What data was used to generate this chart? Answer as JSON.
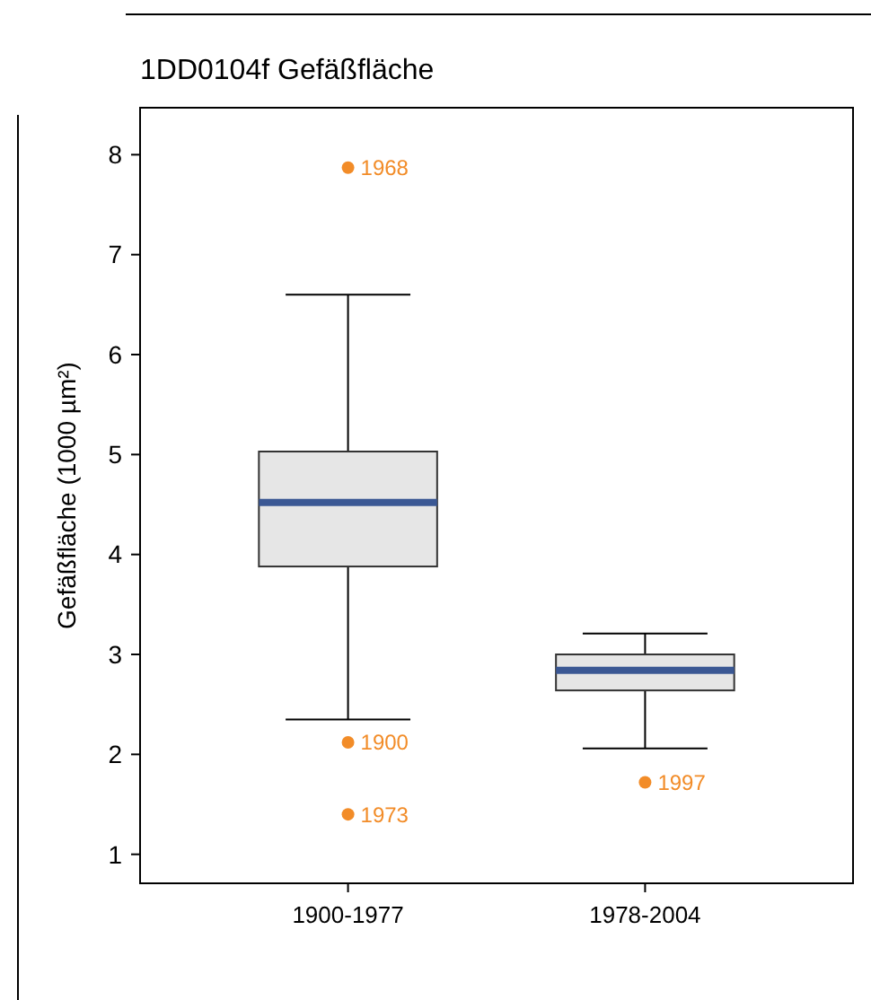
{
  "chart_data": {
    "type": "box",
    "title": "1DD0104f Gefäßfläche",
    "ylabel": "Gefäßfläche (1000 µm²)",
    "categories": [
      "1900-1977",
      "1978-2004"
    ],
    "series": [
      {
        "color": "#e6e6e6",
        "boxes": [
          {
            "low": 2.35,
            "q1": 3.88,
            "median": 4.52,
            "q3": 5.03,
            "high": 6.6
          },
          {
            "low": 2.06,
            "q1": 2.64,
            "median": 2.84,
            "q3": 3.0,
            "high": 3.21
          }
        ]
      },
      {
        "type": "scatter",
        "color": "#f28c28",
        "x": [
          "1900-1977",
          "1900-1977",
          "1900-1977",
          "1978-2004"
        ],
        "values": [
          7.87,
          2.12,
          1.4,
          1.72
        ]
      }
    ],
    "ylim": [
      0.71,
      8.47
    ],
    "yticks": [
      1,
      2,
      3,
      4,
      5,
      6,
      7,
      8
    ],
    "grid": false,
    "annotations": [
      {
        "text": "1968",
        "x": "1900-1977",
        "y": 7.87
      },
      {
        "text": "1900",
        "x": "1900-1977",
        "y": 2.12
      },
      {
        "text": "1973",
        "x": "1900-1977",
        "y": 1.4
      },
      {
        "text": "1997",
        "x": "1978-2004",
        "y": 1.72
      }
    ]
  }
}
